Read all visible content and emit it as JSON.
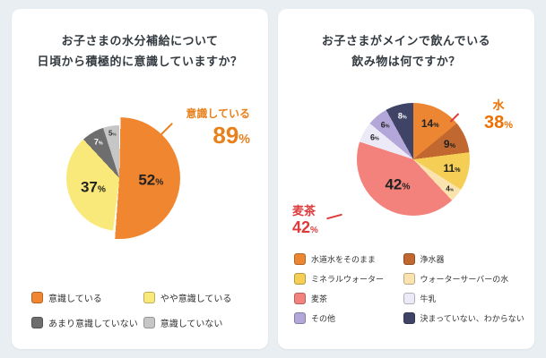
{
  "background_color": "#E8EEF1",
  "cards": {
    "left": {
      "title_lines": [
        "お子さまの水分補給について",
        "日頃から積極的に意識していますか？"
      ],
      "callout": {
        "label": "意識している",
        "value": "89",
        "unit": "%"
      }
    },
    "right": {
      "title_lines": [
        "お子さまがメインで飲んでいる",
        "飲み物は何ですか？"
      ],
      "callout_water": {
        "label": "水",
        "value": "38",
        "unit": "%"
      },
      "callout_mugicha": {
        "label": "麦茶",
        "value": "42",
        "unit": "%"
      }
    }
  },
  "chart_data": [
    {
      "type": "pie",
      "title": "お子さまの水分補給について日頃から積極的に意識していますか？",
      "categories": [
        "意識している",
        "やや意識している",
        "あまり意識していない",
        "意識していない"
      ],
      "values": [
        52,
        37,
        7,
        5
      ],
      "colors": [
        "#F0862F",
        "#F9E97A",
        "#6E6E6E",
        "#C6C6C6"
      ],
      "label_colors": [
        "#222222",
        "#222222",
        "#FFFFFF",
        "#333333"
      ],
      "annotation": "意識している 89%",
      "legend_position": "bottom",
      "emphasize_index": 0
    },
    {
      "type": "pie",
      "title": "お子さまがメインで飲んでいる飲み物は何ですか？",
      "categories": [
        "水道水をそのまま",
        "浄水器",
        "ミネラルウォーター",
        "ウォーターサーバーの水",
        "麦茶",
        "牛乳",
        "その他",
        "決まっていない、わからない"
      ],
      "values": [
        14,
        9,
        11,
        4,
        42,
        6,
        6,
        8
      ],
      "colors": [
        "#EC8633",
        "#C0682F",
        "#F5CE55",
        "#FAE3AE",
        "#F2827B",
        "#EDEAF8",
        "#B3A6D9",
        "#3F4466"
      ],
      "label_colors": [
        "#222222",
        "#222222",
        "#222222",
        "#222222",
        "#222222",
        "#222222",
        "#222222",
        "#FFFFFF"
      ],
      "annotations": [
        "水 38%",
        "麦茶 42%"
      ],
      "legend_position": "bottom"
    }
  ]
}
